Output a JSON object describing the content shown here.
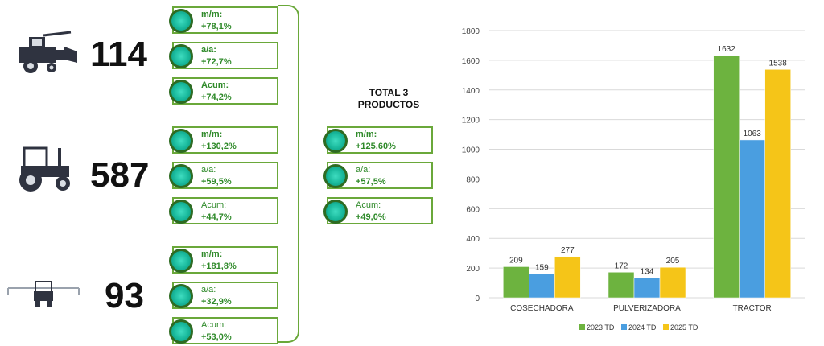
{
  "machines": [
    {
      "icon": "combine-harvester-icon",
      "count": "114",
      "stats": [
        {
          "label": "m/m:",
          "value": "+78,1%"
        },
        {
          "label": "a/a:",
          "value": "+72,7%"
        },
        {
          "label": "Acum:",
          "value": "+74,2%"
        }
      ]
    },
    {
      "icon": "tractor-icon",
      "count": "587",
      "stats": [
        {
          "label": "m/m:",
          "value": "+130,2%"
        },
        {
          "label": "a/a:",
          "value": "+59,5%"
        },
        {
          "label": "Acum:",
          "value": "+44,7%"
        }
      ]
    },
    {
      "icon": "sprayer-icon",
      "count": "93",
      "stats": [
        {
          "label": "m/m:",
          "value": "+181,8%"
        },
        {
          "label": "a/a:",
          "value": "+32,9%"
        },
        {
          "label": "Acum:",
          "value": "+53,0%"
        }
      ]
    }
  ],
  "total": {
    "title_line1": "TOTAL 3",
    "title_line2": "PRODUCTOS",
    "stats": [
      {
        "label": "m/m:",
        "value": "+125,60%"
      },
      {
        "label": "a/a:",
        "value": "+57,5%"
      },
      {
        "label": "Acum:",
        "value": "+49,0%"
      }
    ]
  },
  "colors": {
    "accent_green": "#6aa83a",
    "text_green": "#2f8a2a"
  },
  "chart_data": {
    "type": "bar",
    "categories": [
      "COSECHADORA",
      "PULVERIZADORA",
      "TRACTOR"
    ],
    "series": [
      {
        "name": "2023 TD",
        "values": [
          209,
          172,
          1632
        ],
        "color": "#6db33f"
      },
      {
        "name": "2024 TD",
        "values": [
          159,
          134,
          1063
        ],
        "color": "#4a9ee0"
      },
      {
        "name": "2025 TD",
        "values": [
          277,
          205,
          1538
        ],
        "color": "#f5c518"
      }
    ],
    "yticks": [
      0,
      200,
      400,
      600,
      800,
      1000,
      1200,
      1400,
      1600,
      1800
    ],
    "ylim": [
      0,
      1800
    ],
    "grid": true,
    "legend": "bottom"
  }
}
